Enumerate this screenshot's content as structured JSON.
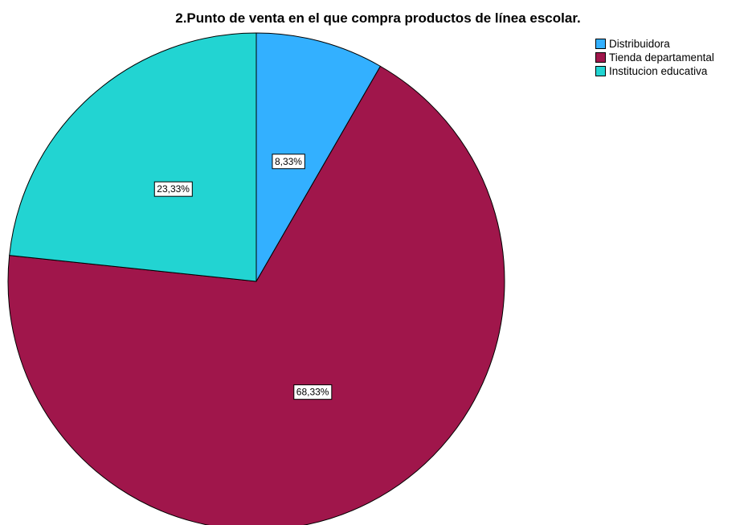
{
  "chart_data": {
    "type": "pie",
    "title": "2.Punto de venta en el que compra productos de línea escolar.",
    "legend_position": "top-right",
    "slices": [
      {
        "label": "Distribuidora",
        "value": 8.33,
        "data_label": "8,33%",
        "color": "#33b0ff"
      },
      {
        "label": "Tienda departamental",
        "value": 68.33,
        "data_label": "68,33%",
        "color": "#a0164b"
      },
      {
        "label": "Institucion educativa",
        "value": 23.33,
        "data_label": "23,33%",
        "color": "#22d4d2"
      }
    ],
    "start": "12 o'clock",
    "direction": "clockwise"
  }
}
